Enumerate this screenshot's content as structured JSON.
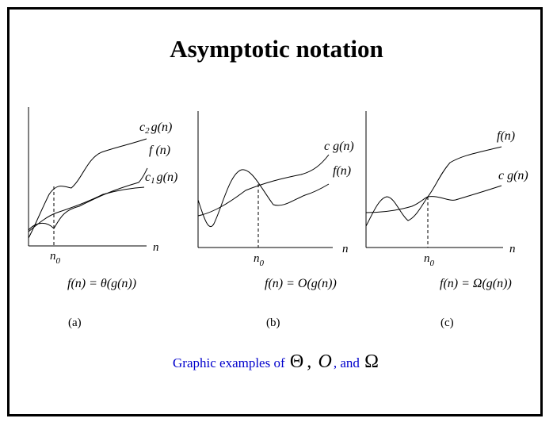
{
  "title": "Asymptotic notation",
  "panels": {
    "a": {
      "curve_labels": {
        "upper": {
          "c": "c",
          "sub": "2",
          "rest": "g(n)"
        },
        "f": "f (n)",
        "lower": {
          "c": "c",
          "sub": "1",
          "rest": "g(n)"
        }
      },
      "axis_n": "n",
      "n0": {
        "n": "n",
        "sub": "0"
      },
      "formula": "f(n) = θ(g(n))",
      "tag": "(a)"
    },
    "b": {
      "curve_labels": {
        "cg": "c g(n)",
        "f": "f(n)"
      },
      "axis_n": "n",
      "n0": {
        "n": "n",
        "sub": "0"
      },
      "formula": "f(n) = O(g(n))",
      "tag": "(b)"
    },
    "c": {
      "curve_labels": {
        "f": "f(n)",
        "cg": "c g(n)"
      },
      "axis_n": "n",
      "n0": {
        "n": "n",
        "sub": "0"
      },
      "formula": "f(n) = Ω(g(n))",
      "tag": "(c)"
    }
  },
  "caption": {
    "text": "Graphic examples of",
    "theta": "Θ",
    "comma": ",",
    "o": "O",
    "and": ", and",
    "omega": "Ω"
  },
  "colors": {
    "caption": "#0000cc",
    "lines": "#000000"
  }
}
